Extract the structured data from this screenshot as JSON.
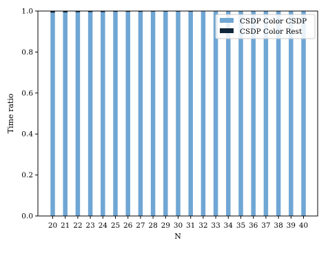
{
  "chart_data": {
    "type": "bar",
    "stacked": true,
    "categories": [
      "20",
      "21",
      "22",
      "23",
      "24",
      "25",
      "26",
      "27",
      "28",
      "29",
      "30",
      "31",
      "32",
      "33",
      "34",
      "35",
      "36",
      "37",
      "38",
      "39",
      "40"
    ],
    "series": [
      {
        "name": "CSDP Color CSDP",
        "color": "#6fa6d4",
        "values": [
          0.992,
          0.993,
          0.994,
          0.995,
          0.995,
          0.996,
          0.996,
          0.996,
          0.997,
          0.997,
          0.997,
          0.997,
          0.998,
          0.998,
          0.998,
          0.998,
          0.998,
          0.998,
          0.998,
          0.999,
          0.999
        ]
      },
      {
        "name": "CSDP Color Rest",
        "color": "#10263a",
        "values": [
          0.008,
          0.007,
          0.006,
          0.005,
          0.005,
          0.004,
          0.004,
          0.004,
          0.003,
          0.003,
          0.003,
          0.003,
          0.002,
          0.002,
          0.002,
          0.002,
          0.002,
          0.002,
          0.002,
          0.001,
          0.001
        ]
      }
    ],
    "xlabel": "N",
    "ylabel": "Time ratio",
    "ylim": [
      0,
      1.0
    ],
    "yticks": [
      "0.0",
      "0.2",
      "0.4",
      "0.6",
      "0.8",
      "1.0"
    ],
    "ytick_values": [
      0,
      0.2,
      0.4,
      0.6,
      0.8,
      1.0
    ],
    "grid": false,
    "legend_position": "top-right"
  }
}
